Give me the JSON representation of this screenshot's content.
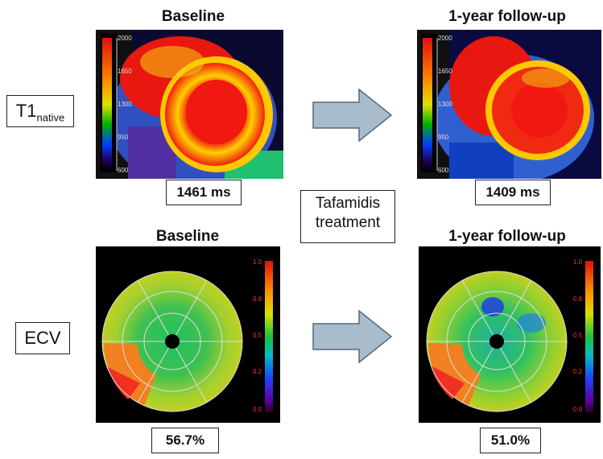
{
  "rows": {
    "t1": {
      "label_main": "T1",
      "label_sub": "native"
    },
    "ecv": {
      "label": "ECV"
    }
  },
  "panels": {
    "t1_baseline": {
      "title": "Baseline",
      "value": "1461 ms"
    },
    "t1_followup": {
      "title": "1-year follow-up",
      "value": "1409 ms"
    },
    "ecv_baseline": {
      "title": "Baseline",
      "value": "56.7%"
    },
    "ecv_followup": {
      "title": "1-year follow-up",
      "value": "51.0%"
    }
  },
  "treatment": {
    "line1": "Tafamidis",
    "line2": "treatment"
  },
  "t1_scale": {
    "ticks": [
      "2000",
      "1650",
      "1300",
      "950",
      "600"
    ]
  },
  "ecv_scale": {
    "ticks": [
      "1.0",
      "0.8",
      "0.5",
      "0.2",
      "0.0"
    ]
  },
  "colors": {
    "arrow": "#a8bccc",
    "arrow_border": "#55697a"
  }
}
